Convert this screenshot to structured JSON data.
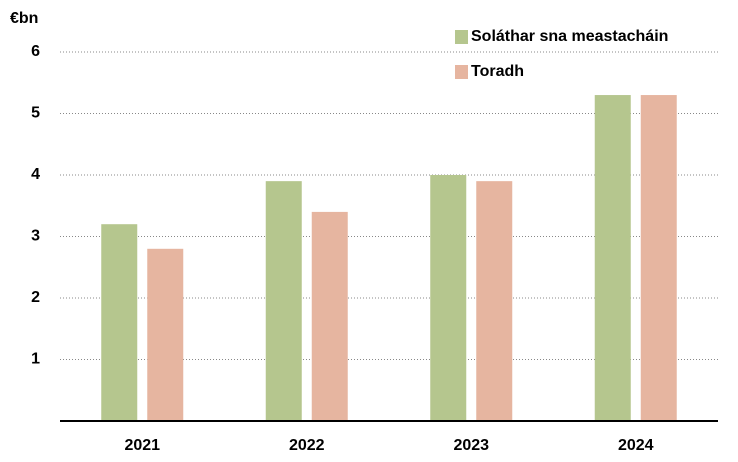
{
  "chart_data": {
    "type": "bar",
    "y_label": "€bn",
    "categories": [
      "2021",
      "2022",
      "2023",
      "2024"
    ],
    "series": [
      {
        "name": "Soláthar sna meastacháin",
        "color": "#b5c68e",
        "values": [
          3.2,
          3.9,
          4.0,
          5.3
        ]
      },
      {
        "name": "Toradh",
        "color": "#e6b5a0",
        "values": [
          2.8,
          3.4,
          3.9,
          5.3
        ]
      }
    ],
    "ylim": [
      0,
      6
    ],
    "yticks": [
      1,
      2,
      3,
      4,
      5,
      6
    ],
    "grid": true,
    "legend": "top-right"
  }
}
